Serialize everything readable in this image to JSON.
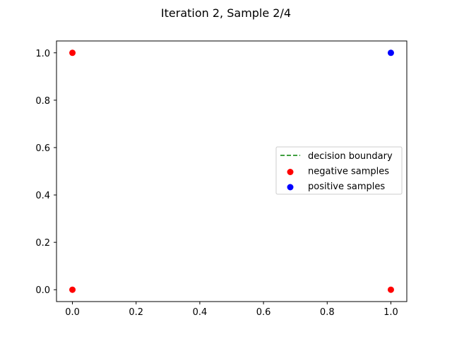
{
  "chart_data": {
    "type": "scatter",
    "title": "Iteration 2, Sample 2/4",
    "xlabel": "",
    "ylabel": "",
    "xlim": [
      -0.05,
      1.05
    ],
    "ylim": [
      -0.05,
      1.05
    ],
    "xticks": [
      0.0,
      0.2,
      0.4,
      0.6,
      0.8,
      1.0
    ],
    "yticks": [
      0.0,
      0.2,
      0.4,
      0.6,
      0.8,
      1.0
    ],
    "xtick_labels": [
      "0.0",
      "0.2",
      "0.4",
      "0.6",
      "0.8",
      "1.0"
    ],
    "ytick_labels": [
      "0.0",
      "0.2",
      "0.4",
      "0.6",
      "0.8",
      "1.0"
    ],
    "grid": false,
    "legend_position": "center-right",
    "series": [
      {
        "name": "decision boundary",
        "kind": "line",
        "style": "dashed",
        "color": "#008000",
        "points": []
      },
      {
        "name": "negative samples",
        "kind": "scatter",
        "color": "#ff0000",
        "points": [
          {
            "x": 0.0,
            "y": 1.0
          },
          {
            "x": 0.0,
            "y": 0.0
          },
          {
            "x": 1.0,
            "y": 0.0
          }
        ]
      },
      {
        "name": "positive samples",
        "kind": "scatter",
        "color": "#0000ff",
        "points": [
          {
            "x": 1.0,
            "y": 1.0
          }
        ]
      }
    ]
  }
}
